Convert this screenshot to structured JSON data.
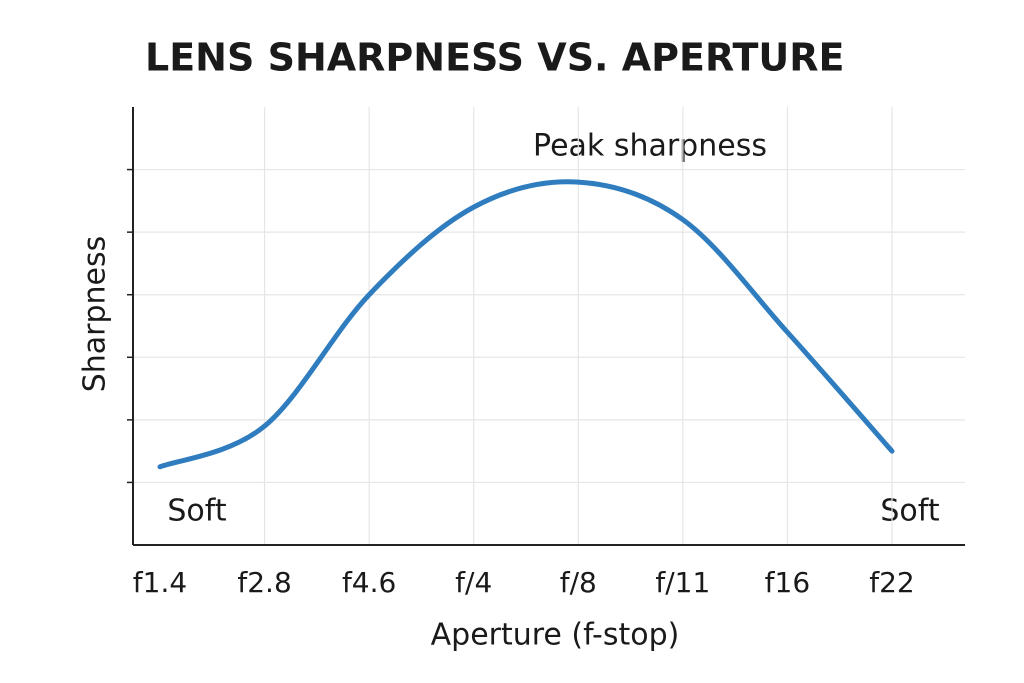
{
  "chart_data": {
    "type": "line",
    "title": "LENS SHARPNESS VS. APERTURE",
    "x_label": "Aperture (f-stop)",
    "y_label": "Sharpness",
    "categories": [
      "f1.4",
      "f2.8",
      "f4.6",
      "f/4",
      "f/8",
      "f/11",
      "f16",
      "f22"
    ],
    "series": [
      {
        "name": "Sharpness",
        "color": "#2f7dbf",
        "values": [
          1.25,
          1.9,
          4.0,
          5.4,
          5.8,
          5.2,
          3.4,
          1.5
        ]
      }
    ],
    "ylim": [
      0,
      7
    ],
    "yticks": [
      1,
      2,
      3,
      4,
      5,
      6
    ],
    "grid": true,
    "annotations": [
      "Peak sharpness",
      "Soft",
      "Soft"
    ]
  }
}
